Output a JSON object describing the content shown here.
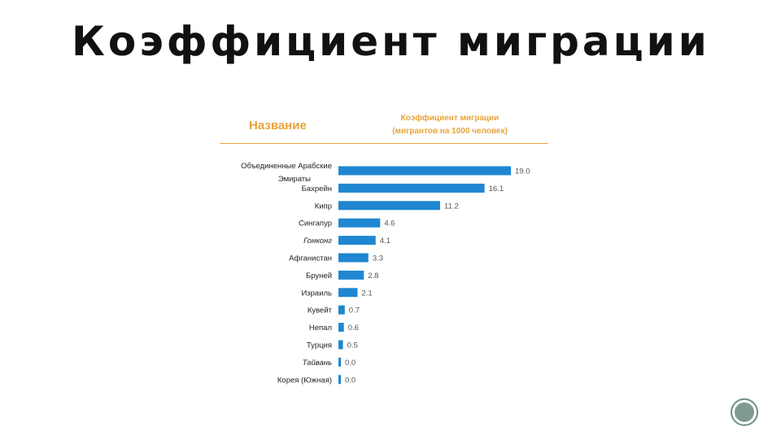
{
  "slide": {
    "title": "Коэффициент миграции"
  },
  "chart_data": {
    "type": "bar",
    "orientation": "horizontal",
    "column_header_label": "Название",
    "column_header_value_line1": "Коэффициент миграции",
    "column_header_value_line2": "(мигрантов на 1000 человек)",
    "categories": [
      "Объединенные Арабские Эмираты",
      "Бахрейн",
      "Кипр",
      "Сингапур",
      "Гонконг",
      "Афганистан",
      "Бруней",
      "Израиль",
      "Кувейт",
      "Непал",
      "Турция",
      "Тайвань",
      "Корея (Южная)"
    ],
    "values": [
      19.0,
      16.1,
      11.2,
      4.6,
      4.1,
      3.3,
      2.8,
      2.1,
      0.7,
      0.6,
      0.5,
      0.0,
      0.0
    ],
    "value_labels": [
      "19.0",
      "16.1",
      "11.2",
      "4.6",
      "4.1",
      "3.3",
      "2.8",
      "2.1",
      "0.7",
      "0.6",
      "0.5",
      "0.0",
      "0.0"
    ],
    "xlim": [
      0,
      19.0
    ],
    "grid": false,
    "bar_color": "#1f87d1",
    "header_color": "#e8a43a"
  }
}
